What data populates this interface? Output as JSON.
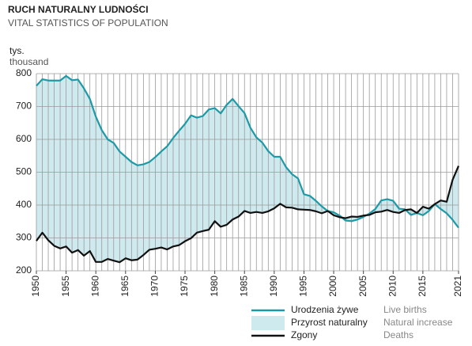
{
  "chart_data": {
    "type": "line",
    "title": "RUCH NATURALNY LUDNOŚCI",
    "subtitle": "VITAL STATISTICS OF POPULATION",
    "ylabel": "tys.",
    "ylabel_en": "thousand",
    "x": [
      1950,
      1951,
      1952,
      1953,
      1954,
      1955,
      1956,
      1957,
      1958,
      1959,
      1960,
      1961,
      1962,
      1963,
      1964,
      1965,
      1966,
      1967,
      1968,
      1969,
      1970,
      1971,
      1972,
      1973,
      1974,
      1975,
      1976,
      1977,
      1978,
      1979,
      1980,
      1981,
      1982,
      1983,
      1984,
      1985,
      1986,
      1987,
      1988,
      1989,
      1990,
      1991,
      1992,
      1993,
      1994,
      1995,
      1996,
      1997,
      1998,
      1999,
      2000,
      2001,
      2002,
      2003,
      2004,
      2005,
      2006,
      2007,
      2008,
      2009,
      2010,
      2011,
      2012,
      2013,
      2014,
      2015,
      2016,
      2017,
      2018,
      2019,
      2020,
      2021
    ],
    "xlim": [
      1950,
      2021
    ],
    "xticks": [
      1950,
      1955,
      1960,
      1965,
      1970,
      1975,
      1980,
      1985,
      1990,
      1995,
      2000,
      2005,
      2010,
      2015,
      2021
    ],
    "ylim": [
      200,
      800
    ],
    "yticks": [
      200,
      300,
      400,
      500,
      600,
      700,
      800
    ],
    "grid": true,
    "series": [
      {
        "name": "Urodzenia żywe",
        "name_en": "Live births",
        "color": "#1d9aa6",
        "values": [
          763,
          783,
          779,
          779,
          779,
          793,
          780,
          782,
          755,
          723,
          669,
          628,
          600,
          589,
          563,
          547,
          531,
          521,
          524,
          531,
          546,
          563,
          579,
          604,
          626,
          647,
          673,
          666,
          671,
          691,
          695,
          679,
          705,
          723,
          701,
          680,
          635,
          606,
          590,
          564,
          547,
          547,
          515,
          494,
          481,
          433,
          428,
          413,
          396,
          382,
          378,
          368,
          353,
          351,
          356,
          364,
          374,
          388,
          414,
          418,
          413,
          389,
          387,
          370,
          376,
          369,
          382,
          403,
          388,
          375,
          355,
          331
        ]
      },
      {
        "name": "Zgony",
        "name_en": "Deaths",
        "color": "#111111",
        "values": [
          291,
          316,
          293,
          276,
          268,
          274,
          255,
          263,
          246,
          260,
          227,
          227,
          236,
          231,
          226,
          238,
          232,
          234,
          248,
          264,
          267,
          271,
          265,
          274,
          278,
          290,
          299,
          316,
          321,
          325,
          351,
          334,
          340,
          356,
          365,
          382,
          376,
          379,
          376,
          381,
          390,
          404,
          393,
          392,
          387,
          386,
          385,
          381,
          375,
          382,
          369,
          363,
          360,
          365,
          364,
          368,
          370,
          378,
          380,
          385,
          379,
          376,
          385,
          387,
          376,
          395,
          389,
          403,
          414,
          410,
          477,
          519
        ]
      }
    ],
    "area": {
      "name": "Przyrost naturalny",
      "name_en": "Natural increase",
      "color": "#cfeaee"
    }
  }
}
